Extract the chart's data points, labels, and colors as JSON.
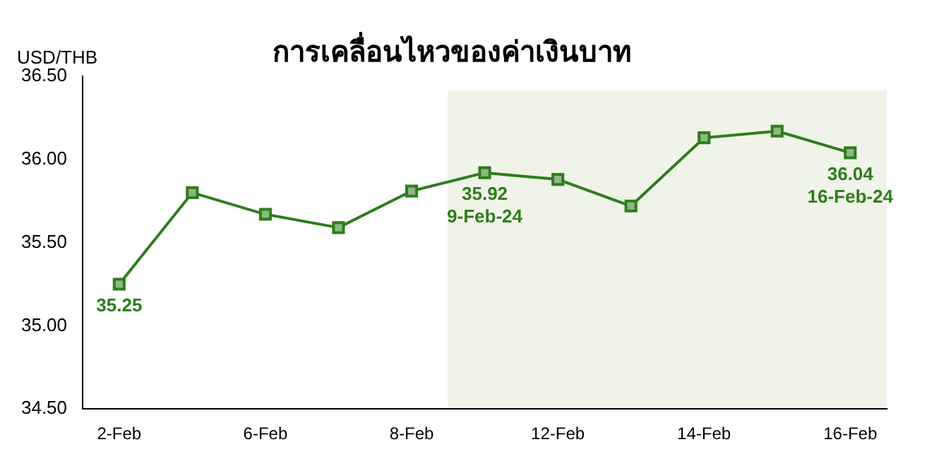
{
  "chart_data": {
    "type": "line",
    "title": "การเคลื่อนไหวของค่าเงินบาท",
    "ylabel": "USD/THB",
    "categories": [
      "2-Feb",
      null,
      "6-Feb",
      null,
      "8-Feb",
      null,
      "12-Feb",
      null,
      "14-Feb",
      null,
      "16-Feb"
    ],
    "series": [
      {
        "color": "#2e7d1e",
        "values": [
          35.25,
          35.8,
          35.67,
          35.59,
          35.81,
          35.92,
          35.88,
          35.72,
          36.13,
          36.17,
          36.04
        ],
        "value_labels": [
          "35.25",
          null,
          null,
          null,
          null,
          "35.92\n9-Feb-24",
          null,
          null,
          null,
          null,
          "36.04\n16-Feb-24"
        ]
      }
    ],
    "marker": "square",
    "line_style": "solid",
    "ylim": [
      34.5,
      36.5
    ],
    "yticks": [
      {
        "value": 34.5,
        "label": "34.50"
      },
      {
        "value": 35,
        "label": "35.00"
      },
      {
        "value": 35.5,
        "label": "35.50"
      },
      {
        "value": 36,
        "label": "36.00"
      },
      {
        "value": 36.5,
        "label": "36.50"
      }
    ],
    "grid": false,
    "legend": false
  }
}
